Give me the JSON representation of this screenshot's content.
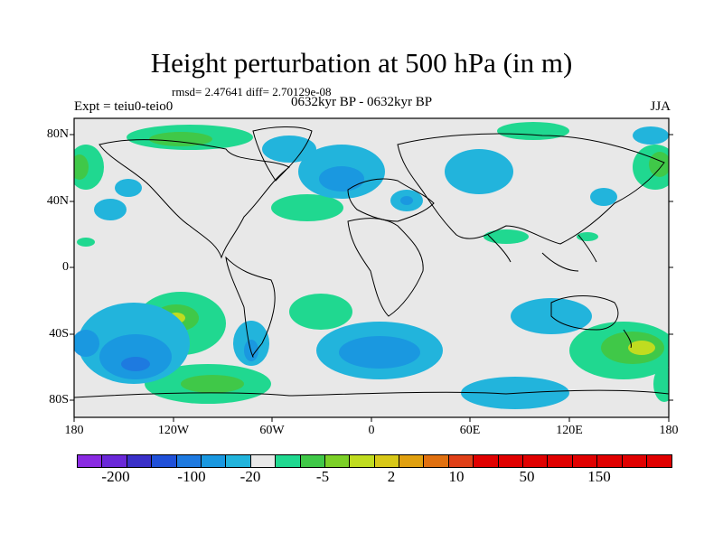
{
  "title": "Height perturbation at 500 hPa (in m)",
  "stats": "rmsd= 2.47641 diff= 2.70129e-08",
  "expt": "Expt = teiu0-teio0",
  "period": "0632kyr BP - 0632kyr BP",
  "season": "JJA",
  "lat_ticks": [
    "80N",
    "40N",
    "0",
    "40S",
    "80S"
  ],
  "lon_ticks": [
    "180",
    "120W",
    "60W",
    "0",
    "60E",
    "120E",
    "180"
  ],
  "colorbar": {
    "colors": [
      "#8a2be2",
      "#6a28d8",
      "#3a30c8",
      "#2050d8",
      "#1e7ae0",
      "#1a98e0",
      "#22b4dc",
      "#e8e8e8",
      "#20d890",
      "#40c848",
      "#7cd028",
      "#c0dc20",
      "#d8c818",
      "#e0a010",
      "#e07010",
      "#e04018",
      "#e00000",
      "#e00000",
      "#e00000",
      "#e00000",
      "#e00000",
      "#e00000",
      "#e00000",
      "#e00000"
    ],
    "labels": [
      "-200",
      "-100",
      "-20",
      "-5",
      "2",
      "10",
      "50",
      "150"
    ]
  }
}
